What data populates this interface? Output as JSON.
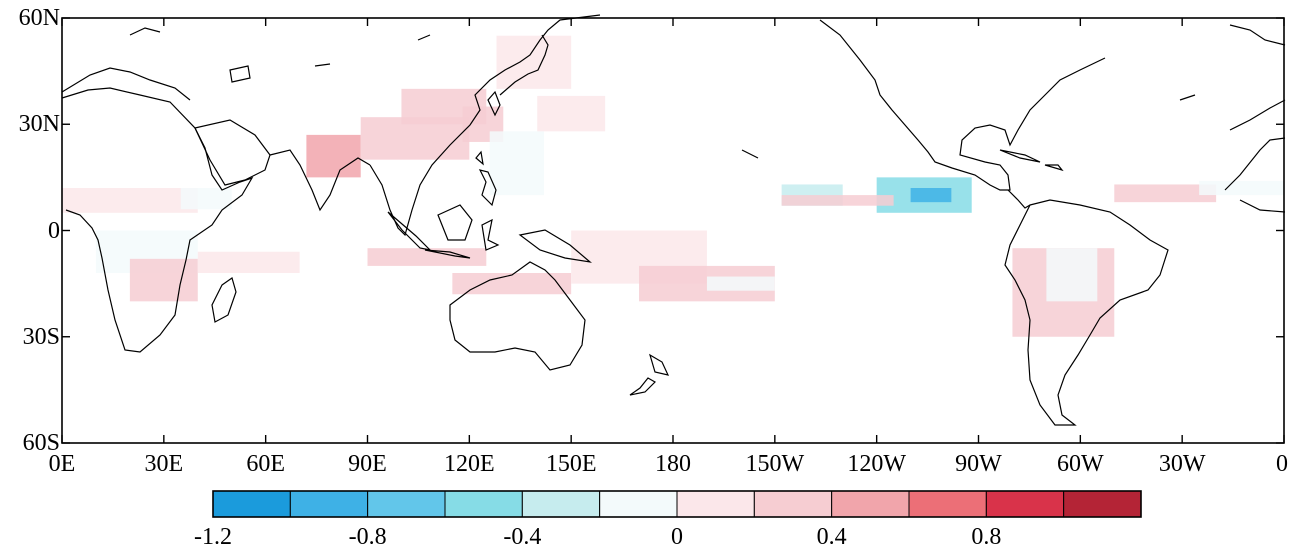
{
  "map": {
    "lat_labels": [
      "60N",
      "30N",
      "0",
      "30S",
      "60S"
    ],
    "lon_labels": [
      "0E",
      "30E",
      "60E",
      "90E",
      "120E",
      "150E",
      "180",
      "150W",
      "120W",
      "90W",
      "60W",
      "30W",
      "0"
    ],
    "extent": {
      "lon": [
        0,
        360
      ],
      "lat": [
        -60,
        60
      ]
    },
    "projection": "equirectangular"
  },
  "colorbar": {
    "range": [
      -1.2,
      1.2
    ],
    "tick_labels": [
      "-1.2",
      "-0.8",
      "-0.4",
      "0",
      "0.4",
      "0.8"
    ],
    "colors": [
      "#1b9bdc",
      "#3eb1e6",
      "#62c6ea",
      "#86dce6",
      "#c6ecee",
      "#f3fafb",
      "#fbe7ea",
      "#f6cdd2",
      "#f1a5ab",
      "#ec6f77",
      "#d9334a",
      "#b42436"
    ]
  },
  "chart_data": {
    "type": "heatmap",
    "description_regions": [
      {
        "lon0": 72,
        "lon1": 88,
        "lat0": 15,
        "lat1": 27,
        "value": 0.5
      },
      {
        "lon0": 88,
        "lon1": 120,
        "lat0": 20,
        "lat1": 32,
        "value": 0.25
      },
      {
        "lon0": 100,
        "lon1": 125,
        "lat0": 30,
        "lat1": 40,
        "value": 0.2
      },
      {
        "lon0": 118,
        "lon1": 130,
        "lat0": 25,
        "lat1": 35,
        "value": 0.25
      },
      {
        "lon0": 126,
        "lon1": 142,
        "lat0": 10,
        "lat1": 28,
        "value": -0.15
      },
      {
        "lon0": 140,
        "lon1": 160,
        "lat0": 28,
        "lat1": 38,
        "value": 0.1
      },
      {
        "lon0": 128,
        "lon1": 150,
        "lat0": 40,
        "lat1": 55,
        "value": 0.15
      },
      {
        "lon0": 0,
        "lon1": 40,
        "lat0": 5,
        "lat1": 12,
        "value": 0.1
      },
      {
        "lon0": 35,
        "lon1": 50,
        "lat0": 6,
        "lat1": 12,
        "value": -0.15
      },
      {
        "lon0": 10,
        "lon1": 40,
        "lat0": -12,
        "lat1": 0,
        "value": -0.2
      },
      {
        "lon0": 20,
        "lon1": 40,
        "lat0": -20,
        "lat1": -8,
        "value": 0.3
      },
      {
        "lon0": 40,
        "lon1": 70,
        "lat0": -12,
        "lat1": -6,
        "value": 0.15
      },
      {
        "lon0": 90,
        "lon1": 125,
        "lat0": -10,
        "lat1": -5,
        "value": 0.3
      },
      {
        "lon0": 115,
        "lon1": 150,
        "lat0": -18,
        "lat1": -12,
        "value": 0.2
      },
      {
        "lon0": 150,
        "lon1": 190,
        "lat0": -15,
        "lat1": 0,
        "value": 0.15
      },
      {
        "lon0": 170,
        "lon1": 210,
        "lat0": -20,
        "lat1": -10,
        "value": 0.3
      },
      {
        "lon0": 190,
        "lon1": 210,
        "lat0": -17,
        "lat1": -13,
        "value": -0.15
      },
      {
        "lon0": 212,
        "lon1": 230,
        "lat0": 7,
        "lat1": 13,
        "value": -0.3
      },
      {
        "lon0": 240,
        "lon1": 268,
        "lat0": 5,
        "lat1": 15,
        "value": -0.6
      },
      {
        "lon0": 250,
        "lon1": 262,
        "lat0": 8,
        "lat1": 12,
        "value": -0.9
      },
      {
        "lon0": 212,
        "lon1": 245,
        "lat0": 7,
        "lat1": 10,
        "value": 0.3
      },
      {
        "lon0": 280,
        "lon1": 310,
        "lat0": -30,
        "lat1": -5,
        "value": 0.2
      },
      {
        "lon0": 290,
        "lon1": 305,
        "lat0": -20,
        "lat1": -5,
        "value": -0.1
      },
      {
        "lon0": 310,
        "lon1": 340,
        "lat0": 8,
        "lat1": 13,
        "value": 0.2
      },
      {
        "lon0": 335,
        "lon1": 360,
        "lat0": 10,
        "lat1": 14,
        "value": -0.2
      }
    ]
  }
}
